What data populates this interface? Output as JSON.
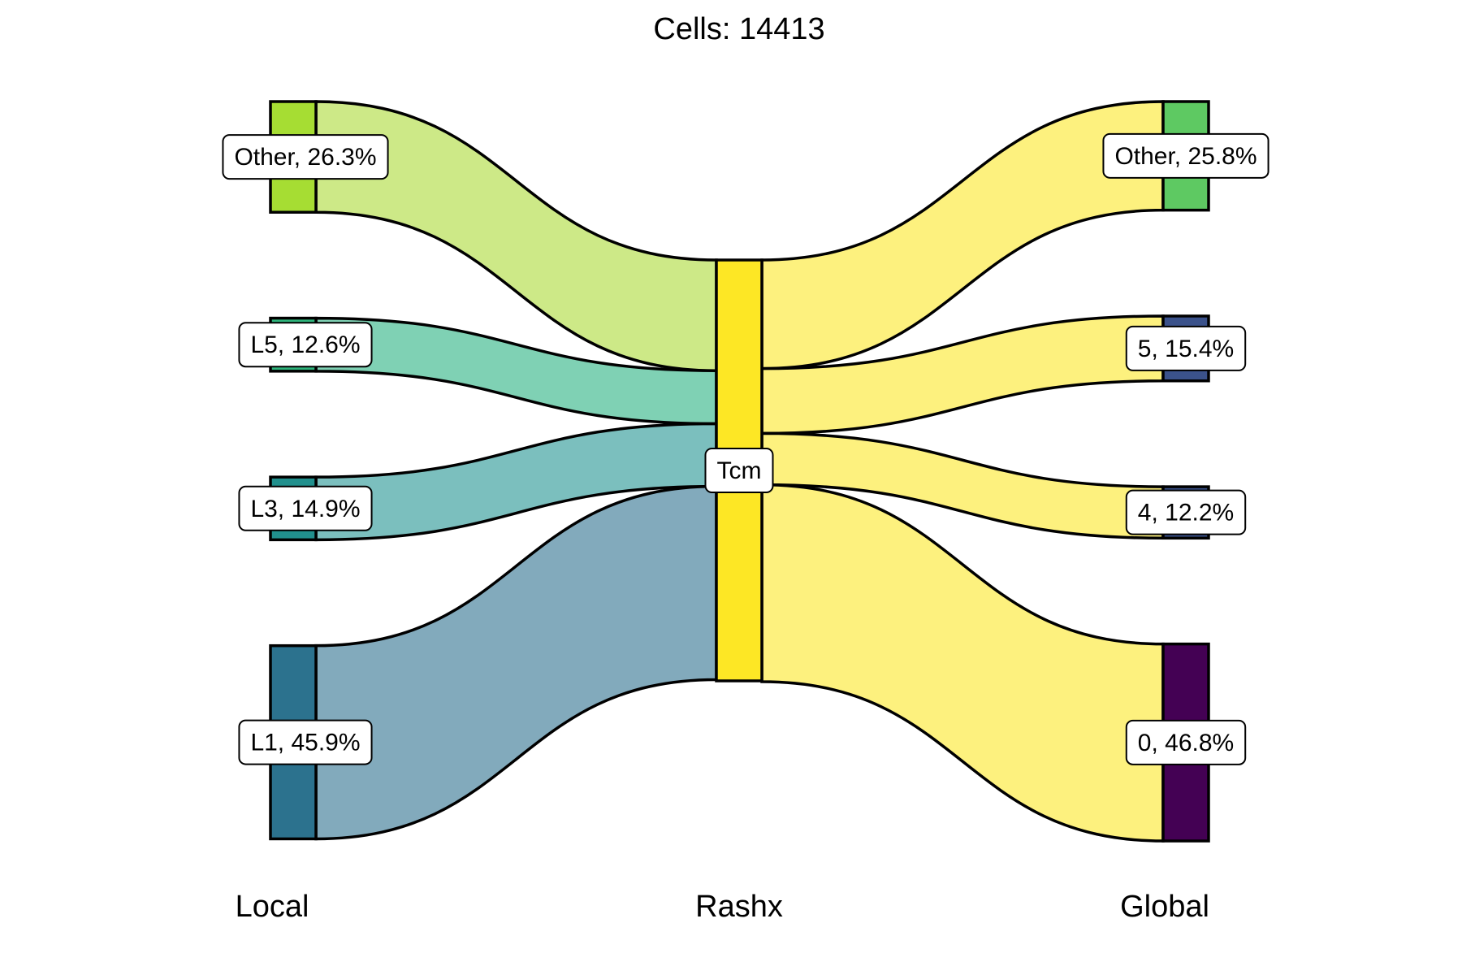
{
  "chart_data": {
    "type": "alluvial",
    "title": "Cells:  14413",
    "axes": [
      "Local",
      "Rashx",
      "Global"
    ],
    "nodes": {
      "Local": [
        {
          "name": "Other",
          "percent": 26.3,
          "label": "Other, 26.3%",
          "color": "#a6dd33"
        },
        {
          "name": "L5",
          "percent": 12.6,
          "label": "L5, 12.6%",
          "color": "#2fb47c"
        },
        {
          "name": "L3",
          "percent": 14.9,
          "label": "L3, 14.9%",
          "color": "#21908d"
        },
        {
          "name": "L1",
          "percent": 45.9,
          "label": "L1, 45.9%",
          "color": "#2c728e"
        }
      ],
      "Rashx": [
        {
          "name": "Tcm",
          "percent": 100,
          "label": "Tcm",
          "color": "#fde725"
        }
      ],
      "Global": [
        {
          "name": "Other",
          "percent": 25.8,
          "label": "Other, 25.8%",
          "color": "#5ec962"
        },
        {
          "name": "5",
          "percent": 15.4,
          "label": "5, 15.4%",
          "color": "#3b528b"
        },
        {
          "name": "4",
          "percent": 12.2,
          "label": "4, 12.2%",
          "color": "#3b528b"
        },
        {
          "name": "0",
          "percent": 46.8,
          "label": "0, 46.8%",
          "color": "#440154"
        }
      ]
    },
    "flows_left": [
      {
        "from": "Other",
        "to": "Tcm",
        "percent": 26.3,
        "color": "#cde987"
      },
      {
        "from": "L5",
        "to": "Tcm",
        "percent": 12.6,
        "color": "#7fd1b4"
      },
      {
        "from": "L3",
        "to": "Tcm",
        "percent": 14.9,
        "color": "#7bbfbe"
      },
      {
        "from": "L1",
        "to": "Tcm",
        "percent": 45.9,
        "color": "#82aabc"
      }
    ],
    "flows_right": [
      {
        "from": "Tcm",
        "to": "Other",
        "percent": 25.8,
        "color": "#fdf17e"
      },
      {
        "from": "Tcm",
        "to": "5",
        "percent": 15.4,
        "color": "#fdf17e"
      },
      {
        "from": "Tcm",
        "to": "4",
        "percent": 12.2,
        "color": "#fdf17e"
      },
      {
        "from": "Tcm",
        "to": "0",
        "percent": 46.8,
        "color": "#fdf17e"
      }
    ]
  }
}
